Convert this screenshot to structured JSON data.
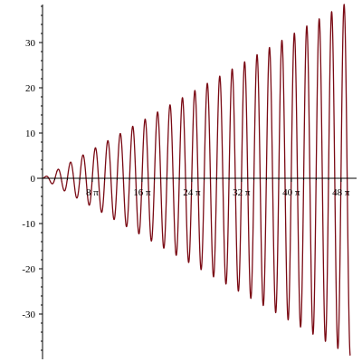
{
  "chart_data": {
    "type": "line",
    "title": "",
    "xlabel": "",
    "ylabel": "",
    "xlim_pi": [
      0,
      49.5
    ],
    "ylim": [
      -40,
      38
    ],
    "function": "t*sin(t)",
    "x_ticks": [
      {
        "value_pi": 8,
        "label": "8 π"
      },
      {
        "value_pi": 16,
        "label": "16 π"
      },
      {
        "value_pi": 24,
        "label": "24 π"
      },
      {
        "value_pi": 32,
        "label": "32 π"
      },
      {
        "value_pi": 40,
        "label": "40 π"
      },
      {
        "value_pi": 48,
        "label": "48 π"
      }
    ],
    "y_ticks": [
      {
        "value": 30,
        "label": "30"
      },
      {
        "value": 20,
        "label": "20"
      },
      {
        "value": 10,
        "label": "10"
      },
      {
        "value": 0,
        "label": "0"
      },
      {
        "value": -10,
        "label": "-10"
      },
      {
        "value": -20,
        "label": "-20"
      },
      {
        "value": -30,
        "label": "-30"
      }
    ],
    "series": [
      {
        "name": "curve",
        "color": "#7a0a14"
      }
    ],
    "grid": false,
    "legend": "none"
  }
}
